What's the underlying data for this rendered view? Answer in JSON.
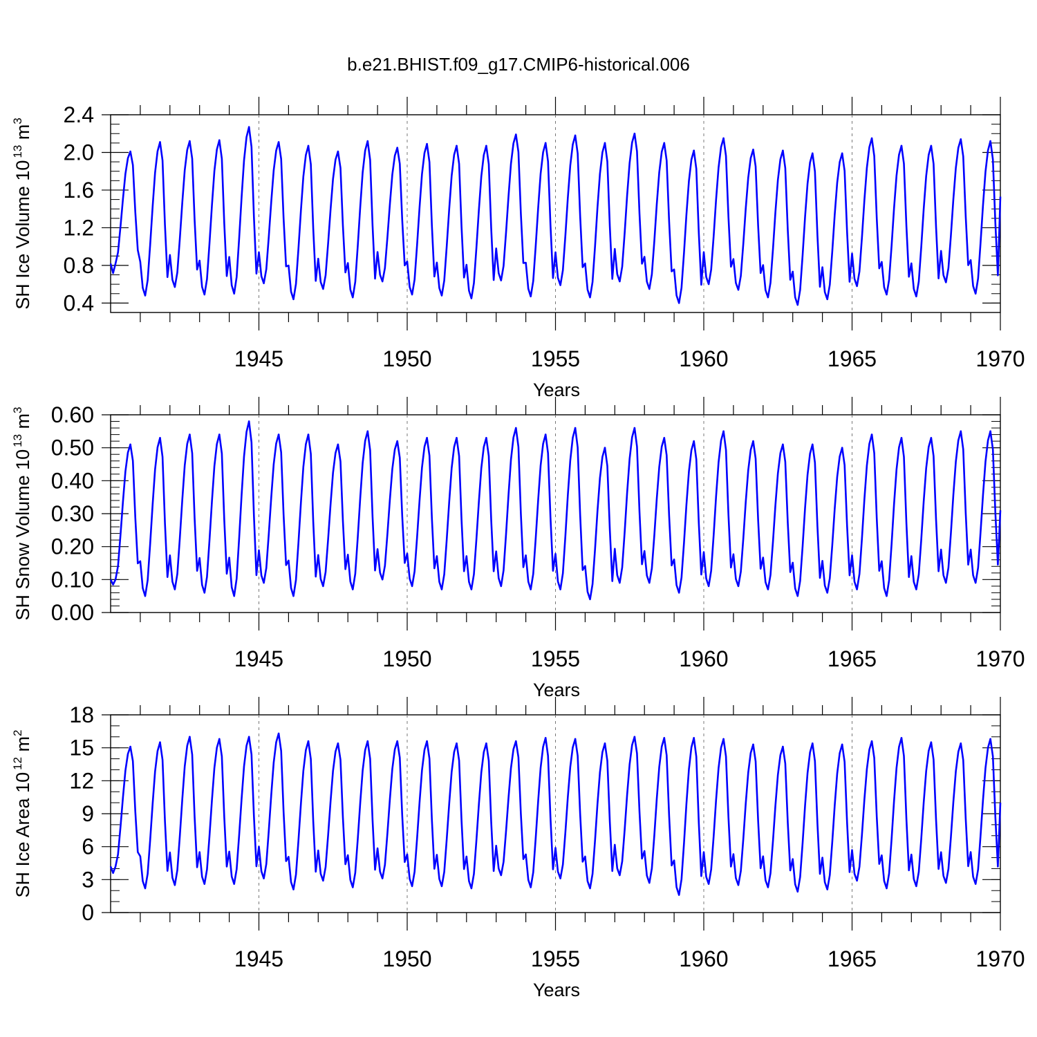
{
  "title": "b.e21.BHIST.f09_g17.CMIP6-historical.006",
  "colors": {
    "series": "#0000ff",
    "axis": "#000000",
    "divider": "#777777"
  },
  "x_axis": {
    "label": "Years",
    "range": [
      1940.0,
      1970.0
    ],
    "major_ticks": [
      1945,
      1950,
      1955,
      1960,
      1965,
      1970
    ],
    "major_tick_labels": [
      "1945",
      "1950",
      "1955",
      "1960",
      "1965",
      "1970"
    ],
    "minor_step": 1
  },
  "chart_data": [
    {
      "type": "line",
      "ylabel": "SH Ice Volume 10",
      "ylabel_sup": "13",
      "ylabel_unit": "m",
      "ylabel_unit_sup": "3",
      "ylim": [
        0.3,
        2.4
      ],
      "yticks": [
        0.4,
        0.8,
        1.2,
        1.6,
        2.0,
        2.4
      ],
      "yticklabels": [
        "0.4",
        "0.8",
        "1.2",
        "1.6",
        "2.0",
        "2.4"
      ],
      "ytick_minor_step": 0.1,
      "grid": false,
      "dividers": [
        1945,
        1950,
        1955,
        1960,
        1965
      ],
      "x_start": 1940.0,
      "x_step_years": 0.08333,
      "series": [
        {
          "maxima": [
            2.01,
            2.11,
            2.12,
            2.13,
            2.27,
            2.11,
            2.07,
            2.01,
            2.12,
            2.05,
            2.09,
            2.07,
            2.07,
            2.19,
            2.1,
            2.18,
            2.1,
            2.2,
            2.1,
            2.02,
            2.15,
            2.03,
            2.02,
            1.99,
            1.99,
            2.15,
            2.07,
            2.07,
            2.14,
            2.12
          ],
          "minima": [
            0.82,
            0.48,
            0.57,
            0.49,
            0.5,
            0.61,
            0.44,
            0.55,
            0.46,
            0.63,
            0.49,
            0.48,
            0.45,
            0.64,
            0.47,
            0.59,
            0.46,
            0.63,
            0.55,
            0.4,
            0.6,
            0.54,
            0.46,
            0.38,
            0.44,
            0.58,
            0.49,
            0.47,
            0.62,
            0.5
          ],
          "end_value": 1.53
        }
      ]
    },
    {
      "type": "line",
      "ylabel": "SH Snow Volume 10",
      "ylabel_sup": "13",
      "ylabel_unit": "m",
      "ylabel_unit_sup": "3",
      "ylim": [
        0.0,
        0.6
      ],
      "yticks": [
        0.0,
        0.1,
        0.2,
        0.3,
        0.4,
        0.5,
        0.6
      ],
      "yticklabels": [
        "0.00",
        "0.10",
        "0.20",
        "0.30",
        "0.40",
        "0.50",
        "0.60"
      ],
      "ytick_minor_step": 0.02,
      "grid": false,
      "dividers": [
        1945,
        1950,
        1955,
        1960,
        1965
      ],
      "x_start": 1940.0,
      "x_step_years": 0.08333,
      "series": [
        {
          "maxima": [
            0.51,
            0.53,
            0.54,
            0.54,
            0.58,
            0.54,
            0.54,
            0.51,
            0.55,
            0.52,
            0.53,
            0.53,
            0.53,
            0.56,
            0.54,
            0.56,
            0.5,
            0.56,
            0.53,
            0.52,
            0.55,
            0.52,
            0.51,
            0.51,
            0.5,
            0.54,
            0.53,
            0.53,
            0.55,
            0.55
          ],
          "minima": [
            0.1,
            0.05,
            0.07,
            0.06,
            0.05,
            0.09,
            0.05,
            0.08,
            0.07,
            0.1,
            0.08,
            0.07,
            0.07,
            0.08,
            0.07,
            0.07,
            0.04,
            0.09,
            0.09,
            0.06,
            0.08,
            0.08,
            0.07,
            0.05,
            0.06,
            0.07,
            0.05,
            0.07,
            0.09,
            0.09
          ],
          "end_value": 0.31
        }
      ]
    },
    {
      "type": "line",
      "ylabel": "SH Ice Area 10",
      "ylabel_sup": "12",
      "ylabel_unit": "m",
      "ylabel_unit_sup": "2",
      "ylim": [
        0,
        18
      ],
      "yticks": [
        0,
        3,
        6,
        9,
        12,
        15,
        18
      ],
      "yticklabels": [
        "0",
        "3",
        "6",
        "9",
        "12",
        "15",
        "18"
      ],
      "ytick_minor_step": 1,
      "grid": false,
      "dividers": [
        1945,
        1950,
        1955,
        1960,
        1965
      ],
      "x_start": 1940.0,
      "x_step_years": 0.08333,
      "series": [
        {
          "maxima": [
            15.1,
            15.5,
            16.0,
            15.8,
            16.0,
            16.3,
            15.6,
            15.4,
            15.6,
            15.6,
            15.6,
            15.4,
            15.4,
            15.6,
            15.9,
            15.8,
            15.4,
            16.0,
            15.9,
            15.9,
            15.8,
            15.3,
            15.1,
            15.4,
            15.3,
            15.6,
            15.9,
            15.5,
            15.4,
            15.8
          ],
          "minima": [
            4.2,
            2.2,
            2.5,
            2.6,
            2.6,
            3.1,
            2.1,
            2.9,
            2.3,
            3.1,
            2.4,
            2.4,
            2.2,
            3.4,
            2.3,
            3.1,
            2.2,
            3.4,
            2.7,
            1.6,
            2.6,
            2.5,
            2.3,
            1.9,
            2.1,
            2.9,
            2.2,
            2.4,
            2.7,
            2.6
          ],
          "end_value": 10.0
        }
      ]
    }
  ]
}
